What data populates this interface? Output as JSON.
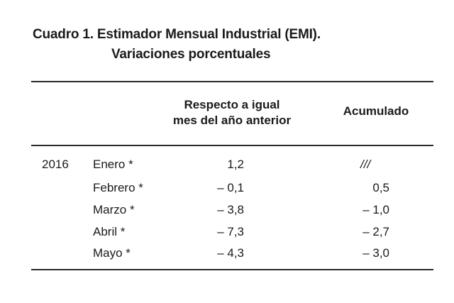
{
  "title": {
    "line1": "Cuadro 1. Estimador Mensual Industrial (EMI).",
    "line2": "Variaciones porcentuales"
  },
  "headers": {
    "respecto_line1": "Respecto a igual",
    "respecto_line2": "mes del año anterior",
    "acumulado": "Acumulado"
  },
  "rows": [
    {
      "year": "2016",
      "month": "Enero *",
      "respecto": "1,2",
      "acumulado": "///"
    },
    {
      "year": "",
      "month": "Febrero *",
      "respecto": "– 0,1",
      "acumulado": "0,5"
    },
    {
      "year": "",
      "month": "Marzo *",
      "respecto": "– 3,8",
      "acumulado": "– 1,0"
    },
    {
      "year": "",
      "month": "Abril *",
      "respecto": "– 7,3",
      "acumulado": "– 2,7"
    },
    {
      "year": "",
      "month": "Mayo *",
      "respecto": "– 4,3",
      "acumulado": "– 3,0"
    }
  ]
}
